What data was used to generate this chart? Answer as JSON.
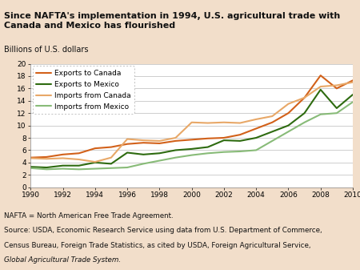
{
  "title": "Since NAFTA's implementation in 1994, U.S. agricultural trade with\nCanada and Mexico has flourished",
  "ylabel": "Billions of U.S. dollars",
  "footnote_line1": "NAFTA = North American Free Trade Agreement.",
  "footnote_line2": "Source: USDA, Economic Research Service using data from U.S. Department of Commerce,",
  "footnote_line3": "Census Bureau, Foreign Trade Statistics, as cited by USDA, Foreign Agricultural Service,",
  "footnote_line4_italic": "Global Agricultural Trade System.",
  "years": [
    1990,
    1991,
    1992,
    1993,
    1994,
    1995,
    1996,
    1997,
    1998,
    1999,
    2000,
    2001,
    2002,
    2003,
    2004,
    2005,
    2006,
    2007,
    2008,
    2009,
    2010
  ],
  "exports_canada": [
    4.8,
    4.9,
    5.3,
    5.5,
    6.3,
    6.5,
    7.0,
    7.2,
    7.1,
    7.5,
    7.7,
    7.9,
    8.0,
    8.5,
    9.5,
    10.5,
    12.0,
    14.5,
    18.1,
    16.0,
    17.3
  ],
  "exports_mexico": [
    3.3,
    3.2,
    3.5,
    3.5,
    4.0,
    3.8,
    5.6,
    5.3,
    5.5,
    6.0,
    6.2,
    6.5,
    7.6,
    7.5,
    8.0,
    9.0,
    10.0,
    12.0,
    15.8,
    12.8,
    15.0
  ],
  "imports_canada": [
    4.7,
    4.6,
    4.7,
    4.5,
    4.1,
    4.8,
    7.8,
    7.6,
    7.5,
    8.0,
    10.5,
    10.4,
    10.5,
    10.4,
    11.0,
    11.5,
    13.5,
    14.5,
    16.3,
    16.5,
    17.0
  ],
  "imports_mexico": [
    3.1,
    2.9,
    3.0,
    2.9,
    3.0,
    3.1,
    3.2,
    3.8,
    4.3,
    4.8,
    5.2,
    5.5,
    5.7,
    5.8,
    6.0,
    7.5,
    9.0,
    10.5,
    11.8,
    12.0,
    13.8
  ],
  "color_exports_canada": "#D2611A",
  "color_exports_mexico": "#2E6B10",
  "color_imports_canada": "#E8A868",
  "color_imports_mexico": "#88BB78",
  "xlim": [
    1990,
    2010
  ],
  "ylim": [
    0,
    20
  ],
  "yticks": [
    0,
    2,
    4,
    6,
    8,
    10,
    12,
    14,
    16,
    18,
    20
  ],
  "xticks": [
    1990,
    1992,
    1994,
    1996,
    1998,
    2000,
    2002,
    2004,
    2006,
    2008,
    2010
  ],
  "title_bg": "#F2DECA",
  "ylabel_bg": "#C8D8C0",
  "plot_outer_bg": "#EDD5BC",
  "plot_inner_bg": "#FFFFFF",
  "footnote_bg": "#C8D8C0"
}
